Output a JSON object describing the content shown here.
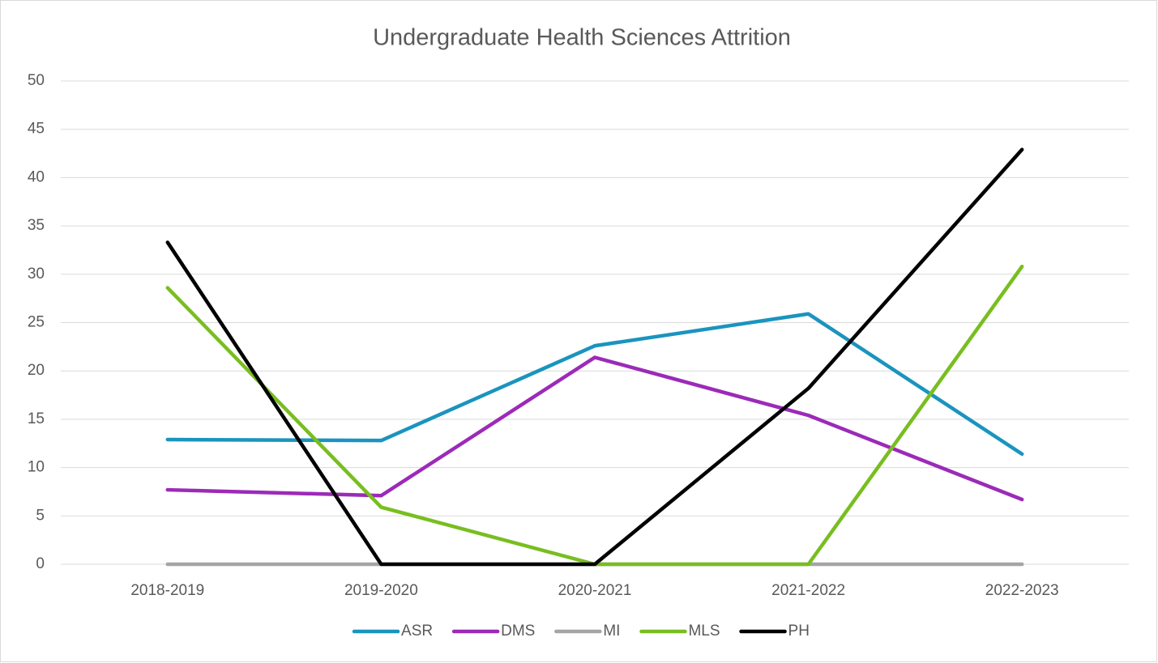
{
  "chart_data": {
    "type": "line",
    "title": "Undergraduate Health Sciences Attrition",
    "categories": [
      "2018-2019",
      "2019-2020",
      "2020-2021",
      "2021-2022",
      "2022-2023"
    ],
    "series": [
      {
        "name": "ASR",
        "color": "#1a94bf",
        "values": [
          12.9,
          12.8,
          22.6,
          25.9,
          11.4
        ]
      },
      {
        "name": "DMS",
        "color": "#9c2ab8",
        "values": [
          7.7,
          7.1,
          21.4,
          15.4,
          6.7
        ]
      },
      {
        "name": "MI",
        "color": "#a5a5a5",
        "values": [
          0,
          0,
          0,
          0,
          0
        ]
      },
      {
        "name": "MLS",
        "color": "#78be20",
        "values": [
          28.6,
          5.9,
          0,
          0,
          30.8
        ]
      },
      {
        "name": "PH",
        "color": "#000000",
        "values": [
          33.3,
          0,
          0,
          18.2,
          42.9
        ]
      }
    ],
    "ylim": [
      0,
      50
    ],
    "yticks": [
      0,
      5,
      10,
      15,
      20,
      25,
      30,
      35,
      40,
      45,
      50
    ],
    "grid": true,
    "legend": "bottom"
  }
}
